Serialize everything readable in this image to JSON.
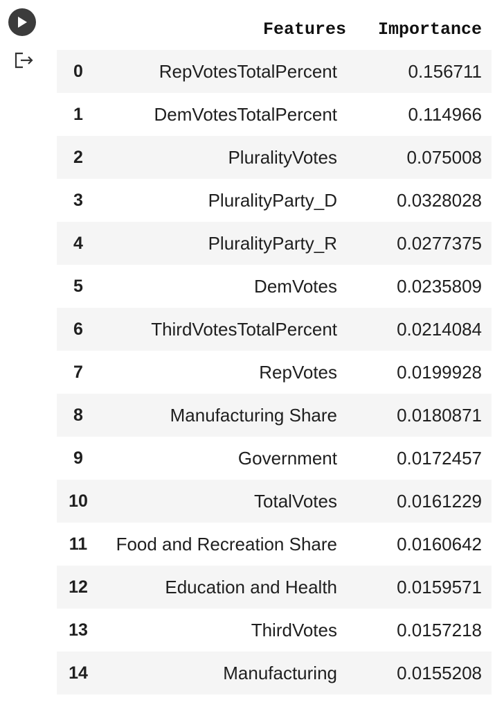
{
  "cell": {
    "run_button_icon": "play-icon",
    "output_icon": "output-redirect-icon"
  },
  "table": {
    "columns": [
      "",
      "Features",
      "Importance"
    ],
    "rows": [
      {
        "index": "0",
        "feature": "RepVotesTotalPercent",
        "importance": "0.156711"
      },
      {
        "index": "1",
        "feature": "DemVotesTotalPercent",
        "importance": "0.114966"
      },
      {
        "index": "2",
        "feature": "PluralityVotes",
        "importance": "0.075008"
      },
      {
        "index": "3",
        "feature": "PluralityParty_D",
        "importance": "0.0328028"
      },
      {
        "index": "4",
        "feature": "PluralityParty_R",
        "importance": "0.0277375"
      },
      {
        "index": "5",
        "feature": "DemVotes",
        "importance": "0.0235809"
      },
      {
        "index": "6",
        "feature": "ThirdVotesTotalPercent",
        "importance": "0.0214084"
      },
      {
        "index": "7",
        "feature": "RepVotes",
        "importance": "0.0199928"
      },
      {
        "index": "8",
        "feature": "Manufacturing Share",
        "importance": "0.0180871"
      },
      {
        "index": "9",
        "feature": "Government",
        "importance": "0.0172457"
      },
      {
        "index": "10",
        "feature": "TotalVotes",
        "importance": "0.0161229"
      },
      {
        "index": "11",
        "feature": "Food and Recreation Share",
        "importance": "0.0160642"
      },
      {
        "index": "12",
        "feature": "Education and Health",
        "importance": "0.0159571"
      },
      {
        "index": "13",
        "feature": "ThirdVotes",
        "importance": "0.0157218"
      },
      {
        "index": "14",
        "feature": "Manufacturing",
        "importance": "0.0155208"
      }
    ]
  }
}
